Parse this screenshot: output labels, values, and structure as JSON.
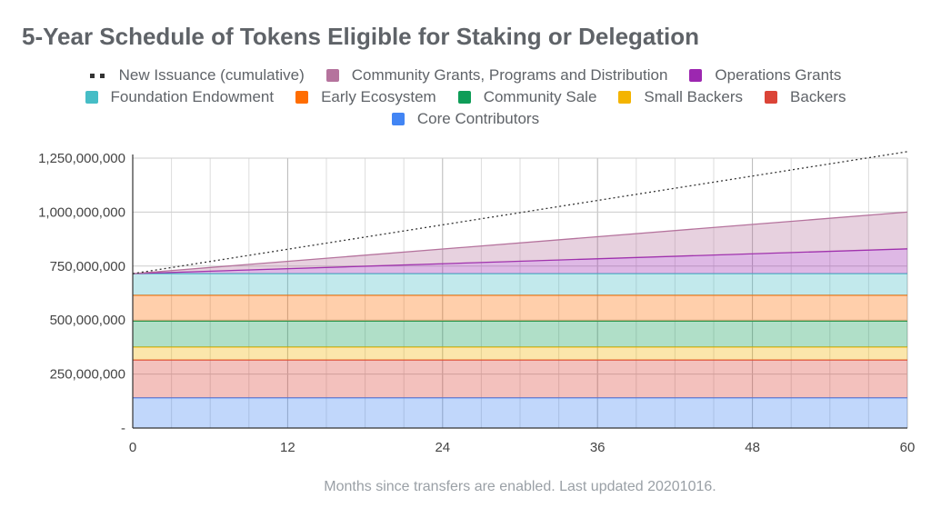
{
  "title": "5-Year Schedule of Tokens Eligible for Staking or Delegation",
  "caption": "Months since transfers are enabled. Last updated 20201016.",
  "legend_rows": [
    [
      {
        "label": "New Issuance (cumulative)",
        "color": "#333333",
        "style": "dots"
      },
      {
        "label": "Community Grants, Programs and Distribution",
        "color": "#b5739d",
        "style": "swatch"
      },
      {
        "label": "Operations Grants",
        "color": "#9c27b0",
        "style": "swatch"
      }
    ],
    [
      {
        "label": "Foundation Endowment",
        "color": "#46bdc6",
        "style": "swatch"
      },
      {
        "label": "Early Ecosystem",
        "color": "#ff6d01",
        "style": "swatch"
      },
      {
        "label": "Community Sale",
        "color": "#0f9d58",
        "style": "swatch"
      },
      {
        "label": "Small Backers",
        "color": "#f4b400",
        "style": "swatch"
      },
      {
        "label": "Backers",
        "color": "#db4437",
        "style": "swatch"
      }
    ],
    [
      {
        "label": "Core Contributors",
        "color": "#4285f4",
        "style": "swatch"
      }
    ]
  ],
  "chart_data": {
    "type": "area",
    "stacked": true,
    "x": [
      0,
      60
    ],
    "xticks": [
      "0",
      "12",
      "24",
      "36",
      "48",
      "60"
    ],
    "xtick_values": [
      0,
      12,
      24,
      36,
      48,
      60
    ],
    "xlim": [
      0,
      60
    ],
    "ylim": [
      0,
      1250000000
    ],
    "yticks": [
      "-",
      "250,000,000",
      "500,000,000",
      "750,000,000",
      "1,000,000,000",
      "1,250,000,000"
    ],
    "ytick_values": [
      0,
      250000000,
      500000000,
      750000000,
      1000000000,
      1250000000
    ],
    "grid": true,
    "legend_position": "top",
    "series": [
      {
        "name": "Core Contributors",
        "color": "#4285f4",
        "values": [
          140000000,
          140000000
        ]
      },
      {
        "name": "Backers",
        "color": "#db4437",
        "values": [
          175000000,
          175000000
        ]
      },
      {
        "name": "Small Backers",
        "color": "#f4b400",
        "values": [
          60000000,
          60000000
        ]
      },
      {
        "name": "Community Sale",
        "color": "#0f9d58",
        "values": [
          120000000,
          120000000
        ]
      },
      {
        "name": "Early Ecosystem",
        "color": "#ff6d01",
        "values": [
          120000000,
          120000000
        ]
      },
      {
        "name": "Foundation Endowment",
        "color": "#46bdc6",
        "values": [
          100000000,
          100000000
        ]
      },
      {
        "name": "Operations Grants",
        "color": "#9c27b0",
        "values": [
          0,
          115000000
        ]
      },
      {
        "name": "Community Grants, Programs and Distribution",
        "color": "#b5739d",
        "values": [
          0,
          170000000
        ]
      }
    ],
    "line_series": {
      "name": "New Issuance (cumulative)",
      "color": "#333333",
      "style": "dotted",
      "values": [
        715000000,
        1280000000
      ]
    }
  }
}
